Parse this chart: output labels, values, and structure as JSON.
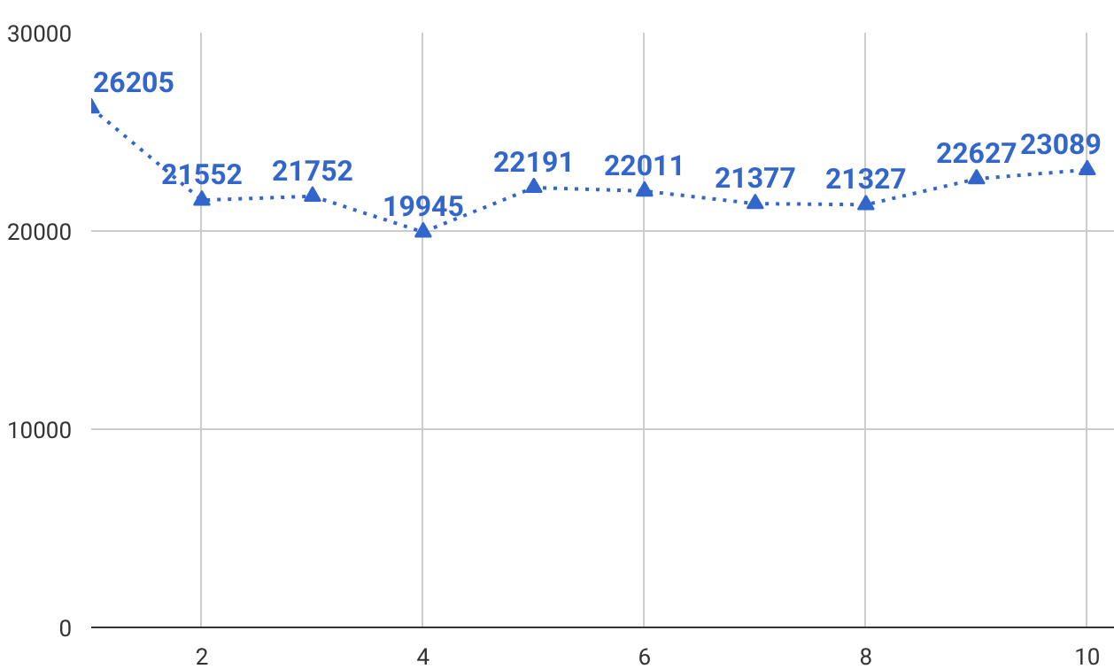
{
  "chart_data": {
    "type": "line",
    "x": [
      1,
      2,
      3,
      4,
      5,
      6,
      7,
      8,
      9,
      10
    ],
    "series": [
      {
        "color": "#3366cc",
        "values": [
          26205,
          21552,
          21752,
          19945,
          22191,
          22011,
          21377,
          21327,
          22627,
          23089
        ]
      }
    ],
    "xlim": [
      1,
      10.25
    ],
    "xticks": [
      2,
      4,
      6,
      8,
      10
    ],
    "ylim": [
      0,
      30000
    ],
    "yticks": [
      0,
      10000,
      20000,
      30000
    ],
    "grid": true,
    "marker": "triangle",
    "line_style": "dotted",
    "data_labels": true
  }
}
